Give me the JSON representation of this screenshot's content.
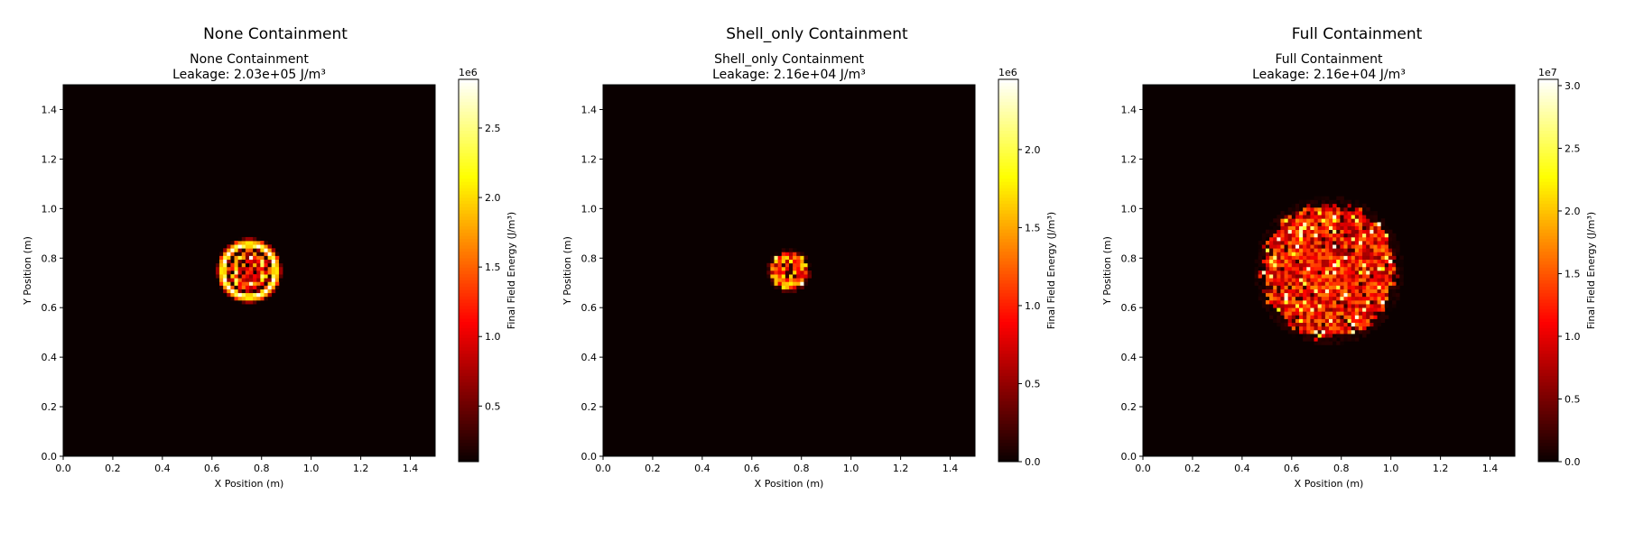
{
  "chart_data": [
    {
      "type": "heatmap",
      "suptitle": "None Containment",
      "title": "None Containment",
      "subtitle": "Leakage: 2.03e+05 J/m³",
      "xlabel": "X Position (m)",
      "ylabel": "Y Position (m)",
      "xlim": [
        0.0,
        1.5
      ],
      "ylim": [
        0.0,
        1.5
      ],
      "xticks": [
        "0.0",
        "0.2",
        "0.4",
        "0.6",
        "0.8",
        "1.0",
        "1.2",
        "1.4"
      ],
      "yticks": [
        "0.0",
        "0.2",
        "0.4",
        "0.6",
        "0.8",
        "1.0",
        "1.2",
        "1.4"
      ],
      "colorbar": {
        "label": "Final Field Energy (J/m³)",
        "multiplier": "1e6",
        "range": [
          0.1,
          2.85
        ],
        "ticks": [
          0.5,
          1.0,
          1.5,
          2.0,
          2.5
        ],
        "tick_labels": [
          "0.5",
          "1.0",
          "1.5",
          "2.0",
          "2.5"
        ]
      },
      "field": {
        "pattern": "ring",
        "center": [
          0.75,
          0.75
        ],
        "radius": 0.125,
        "peak": 2.85
      }
    },
    {
      "type": "heatmap",
      "suptitle": "Shell_only Containment",
      "title": "Shell_only Containment",
      "subtitle": "Leakage: 2.16e+04 J/m³",
      "xlabel": "X Position (m)",
      "ylabel": "Y Position (m)",
      "xlim": [
        0.0,
        1.5
      ],
      "ylim": [
        0.0,
        1.5
      ],
      "xticks": [
        "0.0",
        "0.2",
        "0.4",
        "0.6",
        "0.8",
        "1.0",
        "1.2",
        "1.4"
      ],
      "yticks": [
        "0.0",
        "0.2",
        "0.4",
        "0.6",
        "0.8",
        "1.0",
        "1.2",
        "1.4"
      ],
      "colorbar": {
        "label": "Final Field Energy (J/m³)",
        "multiplier": "1e6",
        "range": [
          0.0,
          2.45
        ],
        "ticks": [
          0.0,
          0.5,
          1.0,
          1.5,
          2.0
        ],
        "tick_labels": [
          "0.0",
          "0.5",
          "1.0",
          "1.5",
          "2.0"
        ]
      },
      "field": {
        "pattern": "core",
        "center": [
          0.75,
          0.75
        ],
        "radius": 0.075,
        "peak": 2.45
      }
    },
    {
      "type": "heatmap",
      "suptitle": "Full Containment",
      "title": "Full Containment",
      "subtitle": "Leakage: 2.16e+04 J/m³",
      "xlabel": "X Position (m)",
      "ylabel": "Y Position (m)",
      "xlim": [
        0.0,
        1.5
      ],
      "ylim": [
        0.0,
        1.5
      ],
      "xticks": [
        "0.0",
        "0.2",
        "0.4",
        "0.6",
        "0.8",
        "1.0",
        "1.2",
        "1.4"
      ],
      "yticks": [
        "0.0",
        "0.2",
        "0.4",
        "0.6",
        "0.8",
        "1.0",
        "1.2",
        "1.4"
      ],
      "colorbar": {
        "label": "Final Field Energy (J/m³)",
        "multiplier": "1e7",
        "range": [
          0.0,
          3.05
        ],
        "ticks": [
          0.0,
          0.5,
          1.0,
          1.5,
          2.0,
          2.5,
          3.0
        ],
        "tick_labels": [
          "0.0",
          "0.5",
          "1.0",
          "1.5",
          "2.0",
          "2.5",
          "3.0"
        ]
      },
      "field": {
        "pattern": "disk",
        "center": [
          0.75,
          0.75
        ],
        "radius": 0.27,
        "peak": 3.0
      }
    }
  ]
}
